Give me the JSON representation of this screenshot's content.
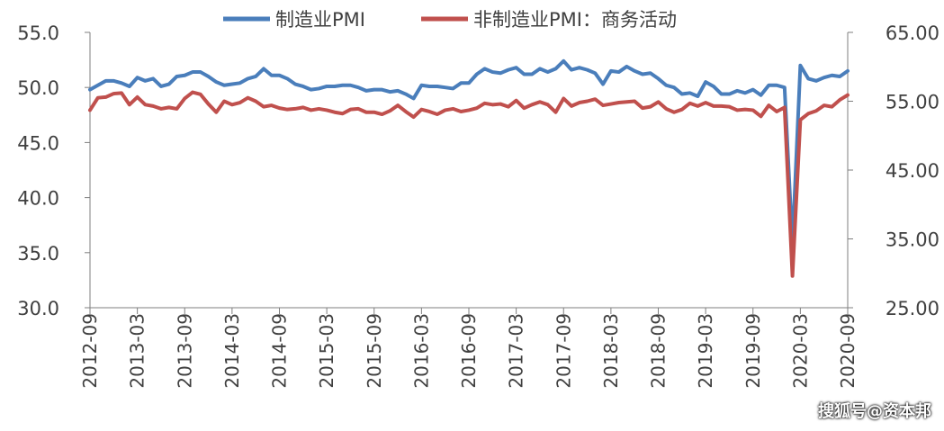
{
  "chart_data": {
    "type": "line",
    "legend_position": "top",
    "grid": false,
    "x_tick_labels": [
      "2012-09",
      "2013-03",
      "2013-09",
      "2014-03",
      "2014-09",
      "2015-03",
      "2015-09",
      "2016-03",
      "2016-09",
      "2017-03",
      "2017-09",
      "2018-03",
      "2018-09",
      "2019-03",
      "2019-09",
      "2020-03",
      "2020-09"
    ],
    "y_left": {
      "ylim": [
        30,
        55
      ],
      "ticks": [
        "30.0",
        "35.0",
        "40.0",
        "45.0",
        "50.0",
        "55.0"
      ]
    },
    "y_right": {
      "ylim": [
        25,
        65
      ],
      "ticks": [
        "25.00",
        "35.00",
        "45.00",
        "55.00",
        "65.00"
      ]
    },
    "x": [
      "2012-09",
      "2012-10",
      "2012-11",
      "2012-12",
      "2013-01",
      "2013-02",
      "2013-03",
      "2013-04",
      "2013-05",
      "2013-06",
      "2013-07",
      "2013-08",
      "2013-09",
      "2013-10",
      "2013-11",
      "2013-12",
      "2014-01",
      "2014-02",
      "2014-03",
      "2014-04",
      "2014-05",
      "2014-06",
      "2014-07",
      "2014-08",
      "2014-09",
      "2014-10",
      "2014-11",
      "2014-12",
      "2015-01",
      "2015-02",
      "2015-03",
      "2015-04",
      "2015-05",
      "2015-06",
      "2015-07",
      "2015-08",
      "2015-09",
      "2015-10",
      "2015-11",
      "2015-12",
      "2016-01",
      "2016-02",
      "2016-03",
      "2016-04",
      "2016-05",
      "2016-06",
      "2016-07",
      "2016-08",
      "2016-09",
      "2016-10",
      "2016-11",
      "2016-12",
      "2017-01",
      "2017-02",
      "2017-03",
      "2017-04",
      "2017-05",
      "2017-06",
      "2017-07",
      "2017-08",
      "2017-09",
      "2017-10",
      "2017-11",
      "2017-12",
      "2018-01",
      "2018-02",
      "2018-03",
      "2018-04",
      "2018-05",
      "2018-06",
      "2018-07",
      "2018-08",
      "2018-09",
      "2018-10",
      "2018-11",
      "2018-12",
      "2019-01",
      "2019-02",
      "2019-03",
      "2019-04",
      "2019-05",
      "2019-06",
      "2019-07",
      "2019-08",
      "2019-09",
      "2019-10",
      "2019-11",
      "2019-12",
      "2020-01",
      "2020-02",
      "2020-03",
      "2020-04",
      "2020-05",
      "2020-06",
      "2020-07",
      "2020-08",
      "2020-09"
    ],
    "series": [
      {
        "name": "制造业PMI",
        "axis": "left",
        "color": "#4a7ebb",
        "values": [
          49.8,
          50.2,
          50.6,
          50.6,
          50.4,
          50.1,
          50.9,
          50.6,
          50.8,
          50.1,
          50.3,
          51.0,
          51.1,
          51.4,
          51.4,
          51.0,
          50.5,
          50.2,
          50.3,
          50.4,
          50.8,
          51.0,
          51.7,
          51.1,
          51.1,
          50.8,
          50.3,
          50.1,
          49.8,
          49.9,
          50.1,
          50.1,
          50.2,
          50.2,
          50.0,
          49.7,
          49.8,
          49.8,
          49.6,
          49.7,
          49.4,
          49.0,
          50.2,
          50.1,
          50.1,
          50.0,
          49.9,
          50.4,
          50.4,
          51.2,
          51.7,
          51.4,
          51.3,
          51.6,
          51.8,
          51.2,
          51.2,
          51.7,
          51.4,
          51.7,
          52.4,
          51.6,
          51.8,
          51.6,
          51.3,
          50.3,
          51.5,
          51.4,
          51.9,
          51.5,
          51.2,
          51.3,
          50.8,
          50.2,
          50.0,
          49.4,
          49.5,
          49.2,
          50.5,
          50.1,
          49.4,
          49.4,
          49.7,
          49.5,
          49.8,
          49.3,
          50.2,
          50.2,
          50.0,
          35.7,
          52.0,
          50.8,
          50.6,
          50.9,
          51.1,
          51.0,
          51.5
        ]
      },
      {
        "name": "非制造业PMI：商务活动",
        "axis": "right",
        "color": "#c0504d",
        "values": [
          53.7,
          55.5,
          55.6,
          56.1,
          56.2,
          54.5,
          55.6,
          54.5,
          54.3,
          53.9,
          54.1,
          53.9,
          55.4,
          56.3,
          56.0,
          54.6,
          53.4,
          55.0,
          54.5,
          54.8,
          55.5,
          55.0,
          54.2,
          54.4,
          54.0,
          53.8,
          53.9,
          54.1,
          53.7,
          53.9,
          53.7,
          53.4,
          53.2,
          53.8,
          53.9,
          53.4,
          53.4,
          53.1,
          53.6,
          54.4,
          53.5,
          52.7,
          53.8,
          53.5,
          53.1,
          53.7,
          53.9,
          53.5,
          53.7,
          54.0,
          54.7,
          54.5,
          54.6,
          54.2,
          55.1,
          54.0,
          54.5,
          54.9,
          54.5,
          53.4,
          55.4,
          54.3,
          54.8,
          55.0,
          55.3,
          54.4,
          54.6,
          54.8,
          54.9,
          55.0,
          54.0,
          54.2,
          54.9,
          53.9,
          53.4,
          53.8,
          54.7,
          54.3,
          54.8,
          54.3,
          54.3,
          54.2,
          53.7,
          53.8,
          53.7,
          52.8,
          54.4,
          53.5,
          54.1,
          29.6,
          52.3,
          53.2,
          53.6,
          54.4,
          54.2,
          55.2,
          55.9
        ]
      }
    ]
  },
  "watermark_text": "搜狐号@资本邦"
}
